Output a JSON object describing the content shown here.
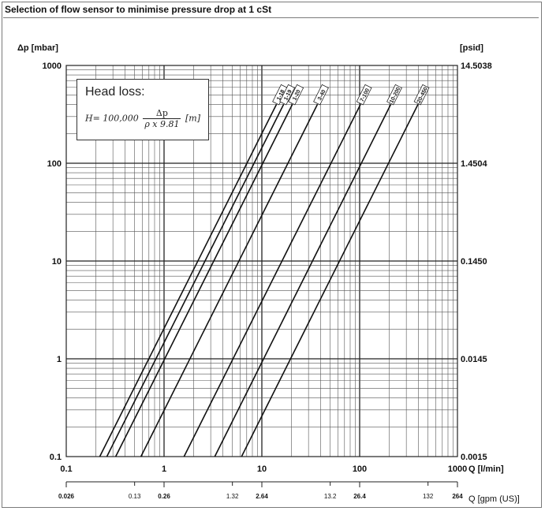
{
  "title": "Selection of flow sensor to minimise pressure drop at 1 cSt",
  "head_loss": {
    "title": "Head loss:",
    "formula_lhs": "H=",
    "coefficient": "100,000",
    "numerator": "Δp",
    "denominator": "ρ x 9.81",
    "unit": "[m]"
  },
  "chart_data": {
    "type": "line",
    "xscale": "log",
    "yscale": "log",
    "xlim": [
      0.1,
      1000
    ],
    "ylim": [
      0.1,
      1000
    ],
    "grid": true,
    "y_left_unit": "Δp [mbar]",
    "y_right_unit": "[psid]",
    "x_bottom_unit": "Q [l/min]",
    "x_gpm_unit": "Q [gpm (US)]",
    "y_left_ticks": [
      "1000",
      "100",
      "10",
      "1",
      "0.1"
    ],
    "y_left_tick_values": [
      1000,
      100,
      10,
      1,
      0.1
    ],
    "y_right_ticks": [
      "14.5038",
      "1.4504",
      "0.1450",
      "0.0145",
      "0.0015"
    ],
    "x_ticks": [
      "0.1",
      "1",
      "10",
      "100",
      "1000"
    ],
    "x_tick_values": [
      0.1,
      1,
      10,
      100,
      1000
    ],
    "gpm_ticks": [
      {
        "label": "0.026",
        "at": 0.1,
        "bold": true
      },
      {
        "label": "0.13",
        "at": 0.5,
        "bold": false
      },
      {
        "label": "0.26",
        "at": 1,
        "bold": true
      },
      {
        "label": "1.32",
        "at": 5,
        "bold": false
      },
      {
        "label": "2.64",
        "at": 10,
        "bold": true
      },
      {
        "label": "13.2",
        "at": 50,
        "bold": false
      },
      {
        "label": "26.4",
        "at": 100,
        "bold": true
      },
      {
        "label": "132",
        "at": 500,
        "bold": false
      },
      {
        "label": "264",
        "at": 1000,
        "bold": true
      }
    ],
    "series": [
      {
        "name": "1-18",
        "points": [
          [
            0.22,
            0.1
          ],
          [
            14.1,
            400
          ]
        ]
      },
      {
        "name": "1-19",
        "points": [
          [
            0.26,
            0.1
          ],
          [
            16.7,
            400
          ]
        ]
      },
      {
        "name": "1-20",
        "points": [
          [
            0.32,
            0.1
          ],
          [
            20.5,
            400
          ]
        ]
      },
      {
        "name": "3-40",
        "points": [
          [
            0.58,
            0.1
          ],
          [
            37,
            400
          ]
        ]
      },
      {
        "name": "7-100",
        "points": [
          [
            1.6,
            0.1
          ],
          [
            102,
            400
          ]
        ]
      },
      {
        "name": "10-200",
        "points": [
          [
            3.3,
            0.1
          ],
          [
            208,
            400
          ]
        ]
      },
      {
        "name": "20-450",
        "points": [
          [
            6.2,
            0.1
          ],
          [
            395,
            400
          ]
        ]
      }
    ]
  }
}
